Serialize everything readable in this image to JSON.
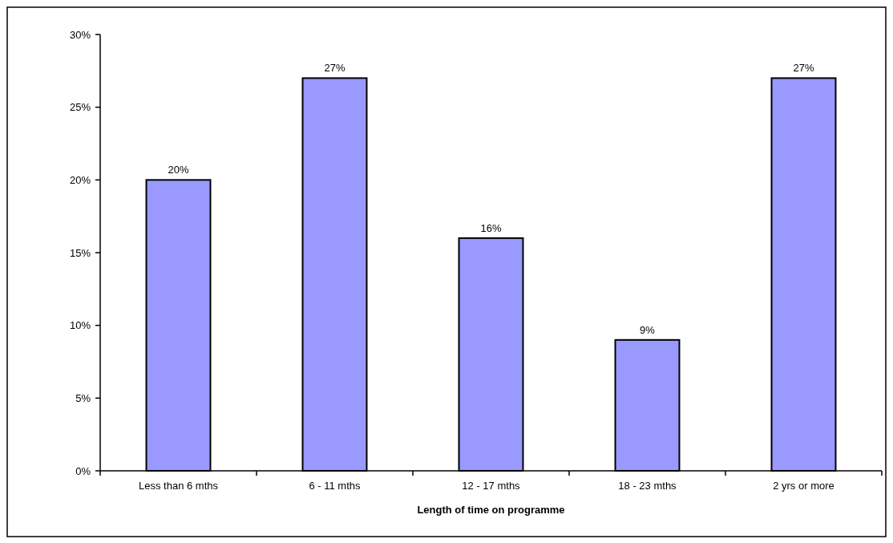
{
  "chart_data": {
    "type": "bar",
    "xlabel": "Length of time on programme",
    "categories": [
      "Less than 6 mths",
      "6 - 11 mths",
      "12 - 17 mths",
      "18 - 23 mths",
      "2 yrs or more"
    ],
    "values": [
      20,
      27,
      16,
      9,
      27
    ],
    "color": "#9999ff",
    "ylim": [
      0,
      30
    ],
    "yticks": [
      {
        "value": 0,
        "label": "0%"
      },
      {
        "value": 5,
        "label": "5%"
      },
      {
        "value": 10,
        "label": "10%"
      },
      {
        "value": 15,
        "label": "15%"
      },
      {
        "value": 20,
        "label": "20%"
      },
      {
        "value": 25,
        "label": "25%"
      },
      {
        "value": 30,
        "label": "30%"
      }
    ],
    "value_labels": [
      "20%",
      "27%",
      "16%",
      "9%",
      "27%"
    ],
    "grid": false
  }
}
